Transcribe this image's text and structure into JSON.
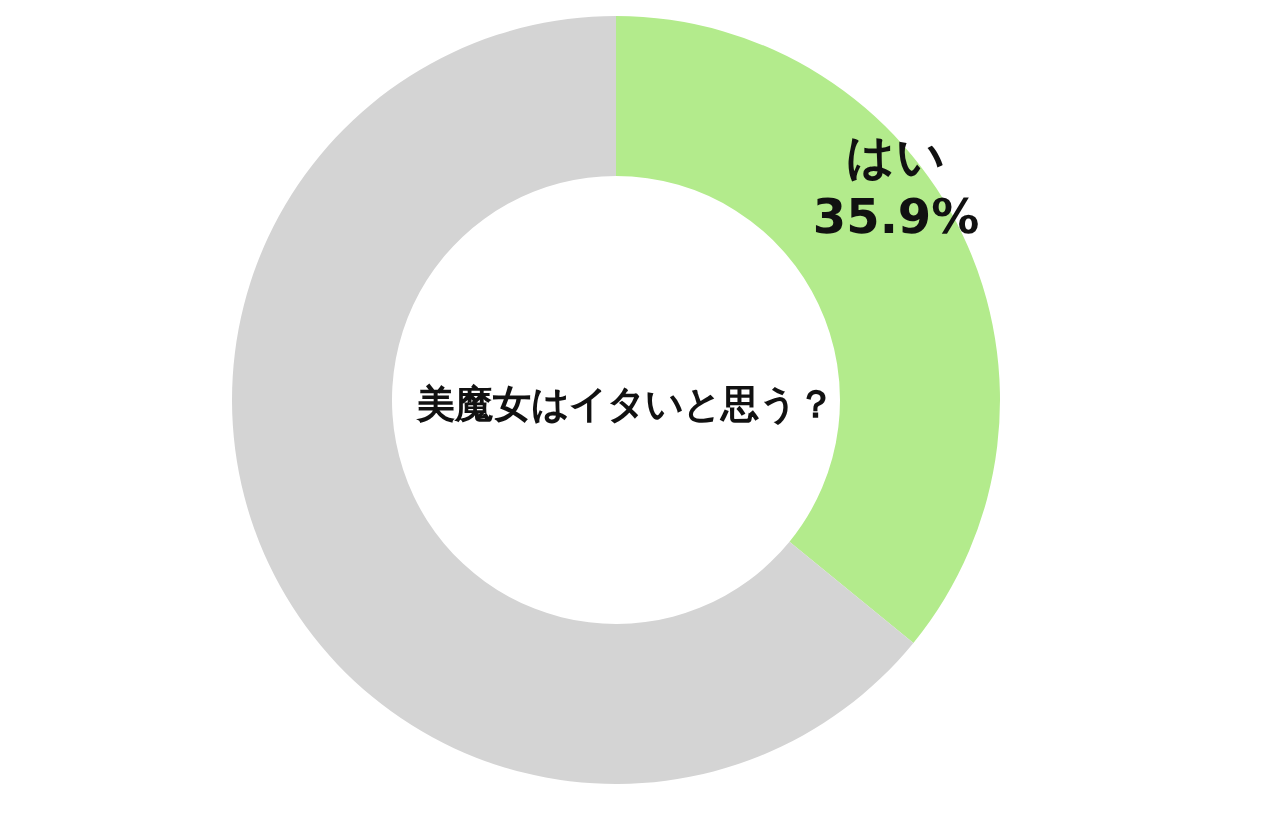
{
  "chart_data": {
    "type": "donut",
    "title": "美魔女はイタいと思う？",
    "categories": [
      "はい",
      null
    ],
    "values": [
      35.9,
      64.1
    ],
    "value_labels": [
      "35.9%",
      null
    ],
    "colors": [
      "#b3eb8c",
      "#d4d4d4"
    ],
    "legend": false
  }
}
